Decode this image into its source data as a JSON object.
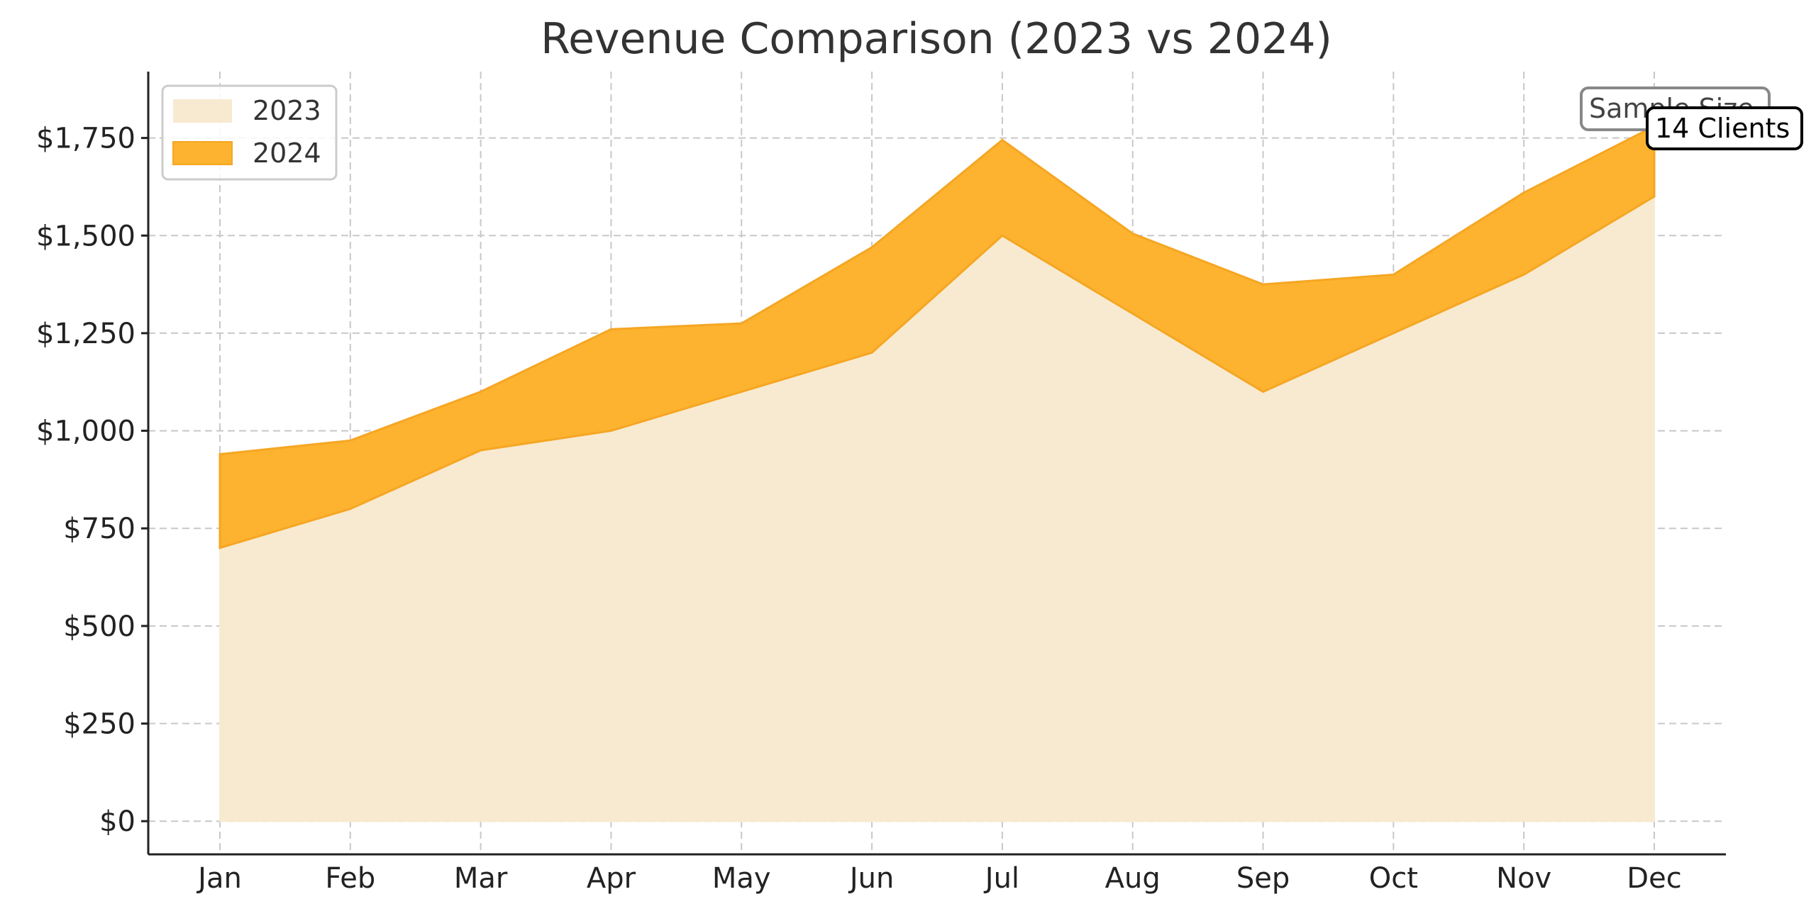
{
  "chart_data": {
    "type": "area",
    "title": "Revenue Comparison (2023 vs 2024)",
    "xlabel": "",
    "ylabel": "",
    "categories": [
      "Jan",
      "Feb",
      "Mar",
      "Apr",
      "May",
      "Jun",
      "Jul",
      "Aug",
      "Sep",
      "Oct",
      "Nov",
      "Dec"
    ],
    "series": [
      {
        "name": "2023",
        "values": [
          700,
          800,
          950,
          1000,
          1100,
          1200,
          1500,
          1300,
          1100,
          1250,
          1400,
          1600
        ],
        "color": "#f8ead0"
      },
      {
        "name": "2024",
        "values": [
          940,
          975,
          1100,
          1260,
          1275,
          1470,
          1745,
          1505,
          1375,
          1400,
          1610,
          1780
        ],
        "color": "#fdb32f"
      }
    ],
    "ylim": [
      -85,
      1920
    ],
    "yticks": [
      0,
      250,
      500,
      750,
      1000,
      1250,
      1500,
      1750
    ],
    "ytick_labels": [
      "$0",
      "$250",
      "$500",
      "$750",
      "$1,000",
      "$1,250",
      "$1,500",
      "$1,750"
    ],
    "grid": true,
    "legend_placement": "top-left",
    "annotations": [
      {
        "text": "Sample Size",
        "style": "gray-box"
      },
      {
        "text": "14 Clients",
        "style": "black-box"
      }
    ]
  }
}
